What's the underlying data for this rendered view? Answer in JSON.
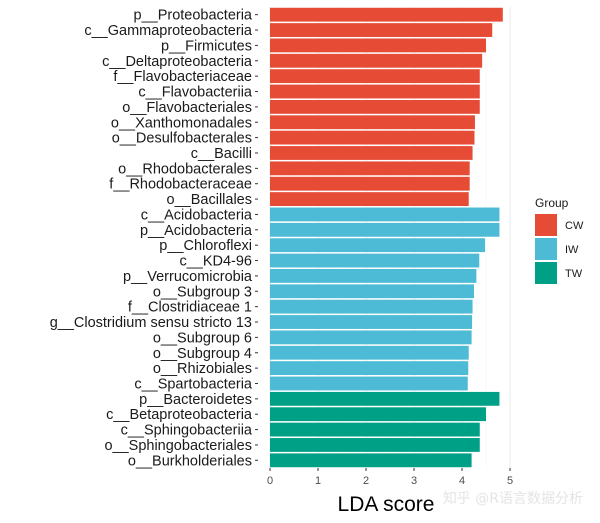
{
  "chart_data": {
    "type": "bar",
    "orientation": "horizontal",
    "xlabel": "LDA score",
    "xlim": [
      0,
      5
    ],
    "xticks": [
      0,
      1,
      2,
      3,
      4,
      5
    ],
    "grid": true,
    "legend": {
      "title": "Group",
      "position": "right",
      "entries": [
        {
          "name": "CW",
          "color": "#e64b35"
        },
        {
          "name": "IW",
          "color": "#4dbbd5"
        },
        {
          "name": "TW",
          "color": "#00a087"
        }
      ]
    },
    "bars": [
      {
        "label": "p__Proteobacteria",
        "value": 4.85,
        "group": "CW"
      },
      {
        "label": "c__Gammaproteobacteria",
        "value": 4.63,
        "group": "CW"
      },
      {
        "label": "p__Firmicutes",
        "value": 4.5,
        "group": "CW"
      },
      {
        "label": "c__Deltaproteobacteria",
        "value": 4.42,
        "group": "CW"
      },
      {
        "label": "f__Flavobacteriaceae",
        "value": 4.37,
        "group": "CW"
      },
      {
        "label": "c__Flavobacteriia",
        "value": 4.37,
        "group": "CW"
      },
      {
        "label": "o__Flavobacteriales",
        "value": 4.37,
        "group": "CW"
      },
      {
        "label": "o__Xanthomonadales",
        "value": 4.27,
        "group": "CW"
      },
      {
        "label": "o__Desulfobacterales",
        "value": 4.26,
        "group": "CW"
      },
      {
        "label": "c__Bacilli",
        "value": 4.22,
        "group": "CW"
      },
      {
        "label": "o__Rhodobacterales",
        "value": 4.16,
        "group": "CW"
      },
      {
        "label": "f__Rhodobacteraceae",
        "value": 4.16,
        "group": "CW"
      },
      {
        "label": "o__Bacillales",
        "value": 4.14,
        "group": "CW"
      },
      {
        "label": "c__Acidobacteria",
        "value": 4.78,
        "group": "IW"
      },
      {
        "label": "p__Acidobacteria",
        "value": 4.78,
        "group": "IW"
      },
      {
        "label": "p__Chloroflexi",
        "value": 4.48,
        "group": "IW"
      },
      {
        "label": "c__KD4-96",
        "value": 4.36,
        "group": "IW"
      },
      {
        "label": "p__Verrucomicrobia",
        "value": 4.3,
        "group": "IW"
      },
      {
        "label": "o__Subgroup 3",
        "value": 4.25,
        "group": "IW"
      },
      {
        "label": "f__Clostridiaceae 1",
        "value": 4.22,
        "group": "IW"
      },
      {
        "label": "g__Clostridium sensu stricto 13",
        "value": 4.21,
        "group": "IW"
      },
      {
        "label": "o__Subgroup 6",
        "value": 4.2,
        "group": "IW"
      },
      {
        "label": "o__Subgroup 4",
        "value": 4.14,
        "group": "IW"
      },
      {
        "label": "o__Rhizobiales",
        "value": 4.13,
        "group": "IW"
      },
      {
        "label": "c__Spartobacteria",
        "value": 4.12,
        "group": "IW"
      },
      {
        "label": "p__Bacteroidetes",
        "value": 4.78,
        "group": "TW"
      },
      {
        "label": "c__Betaproteobacteria",
        "value": 4.5,
        "group": "TW"
      },
      {
        "label": "c__Sphingobacteriia",
        "value": 4.37,
        "group": "TW"
      },
      {
        "label": "o__Sphingobacteriales",
        "value": 4.37,
        "group": "TW"
      },
      {
        "label": "o__Burkholderiales",
        "value": 4.2,
        "group": "TW"
      }
    ]
  },
  "watermark": "知乎 @R语言数据分析"
}
